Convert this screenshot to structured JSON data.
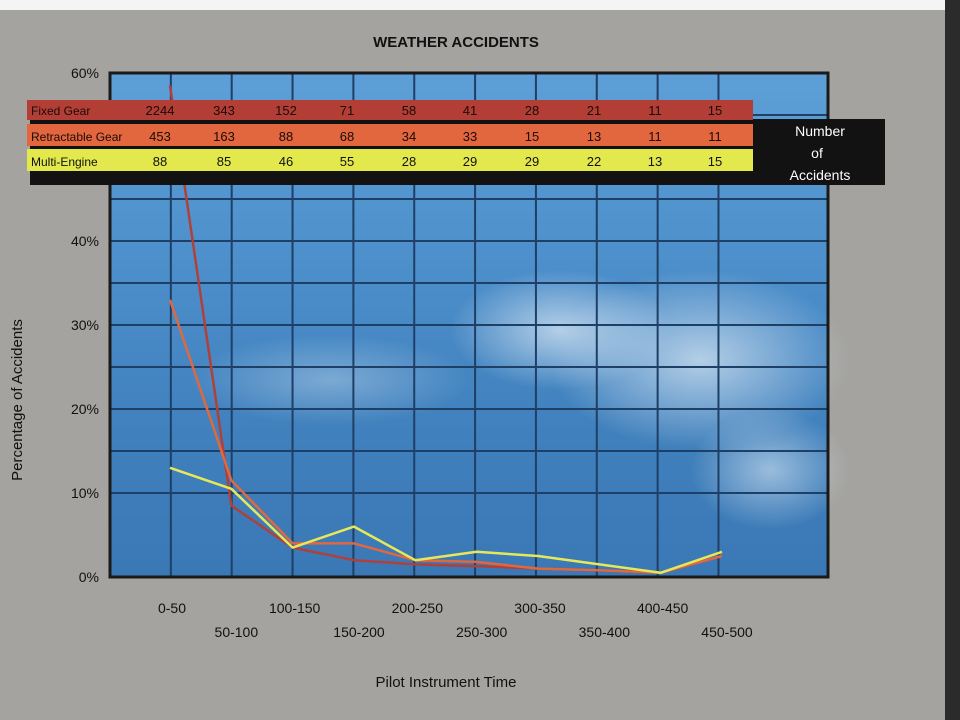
{
  "chart_data": {
    "type": "line",
    "title": "WEATHER ACCIDENTS",
    "xlabel": "Pilot Instrument Time",
    "ylabel": "Percentage of Accidents",
    "categories": [
      "0-50",
      "50-100",
      "100-150",
      "150-200",
      "200-250",
      "250-300",
      "300-350",
      "350-400",
      "400-450",
      "450-500"
    ],
    "yticks": [
      "0%",
      "10%",
      "20%",
      "30%",
      "40%",
      "60%"
    ],
    "ytick_values": [
      0,
      10,
      20,
      30,
      40,
      60
    ],
    "ylim": [
      0,
      60
    ],
    "grid": true,
    "series": [
      {
        "name": "Fixed Gear",
        "color": "#b0403a",
        "values": [
          58.5,
          8.5,
          3.5,
          2.0,
          1.5,
          1.3,
          1.0,
          0.8,
          0.5,
          2.5
        ]
      },
      {
        "name": "Retractable Gear",
        "color": "#e06840",
        "values": [
          33.0,
          11.5,
          4.0,
          4.0,
          2.0,
          1.8,
          1.0,
          0.8,
          0.5,
          2.5
        ]
      },
      {
        "name": "Multi-Engine",
        "color": "#e6e85a",
        "values": [
          13.0,
          10.5,
          3.5,
          6.0,
          2.0,
          3.0,
          2.5,
          1.5,
          0.5,
          3.0
        ]
      }
    ],
    "legend_title": [
      "Number",
      "of",
      "Accidents"
    ],
    "legend_placement": "top",
    "accident_counts": [
      {
        "name": "Fixed Gear",
        "counts": [
          "2244",
          "343",
          "152",
          "71",
          "58",
          "41",
          "28",
          "21",
          "11",
          "15"
        ]
      },
      {
        "name": "Retractable Gear",
        "counts": [
          "453",
          "163",
          "88",
          "68",
          "34",
          "33",
          "15",
          "13",
          "11",
          "11"
        ]
      },
      {
        "name": "Multi-Engine",
        "counts": [
          "88",
          "85",
          "46",
          "55",
          "28",
          "29",
          "29",
          "22",
          "13",
          "15"
        ]
      }
    ]
  }
}
